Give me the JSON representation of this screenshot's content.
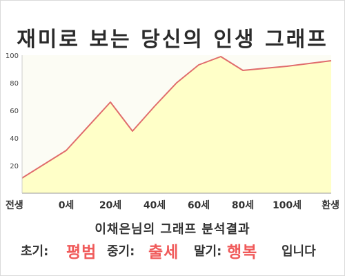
{
  "title": "재미로 보는 당신의 인생 그래프",
  "chart_data": {
    "type": "area",
    "x_categories": [
      "전생",
      "0세",
      "20세",
      "40세",
      "60세",
      "80세",
      "100세",
      "환생"
    ],
    "x": [
      -20,
      0,
      20,
      30,
      40,
      50,
      60,
      70,
      80,
      100,
      120
    ],
    "values": [
      11,
      31,
      66,
      45,
      63,
      80,
      93,
      99,
      89,
      92,
      96
    ],
    "ylim": [
      0,
      100
    ],
    "y_ticks": [
      20,
      40,
      60,
      80,
      100
    ],
    "grid": false,
    "colors": {
      "line": "#e06c6c",
      "fill": "#ffffc8",
      "text": "#333333"
    }
  },
  "analysis": {
    "heading": "이채은님의 그래프 분석결과",
    "early_label": "초기:",
    "early_value": "평범",
    "middle_label": "중기:",
    "middle_value": "출세",
    "late_label": "말기:",
    "late_value": "행복",
    "ending": "입니다",
    "highlight_color": "#f05a5a"
  }
}
